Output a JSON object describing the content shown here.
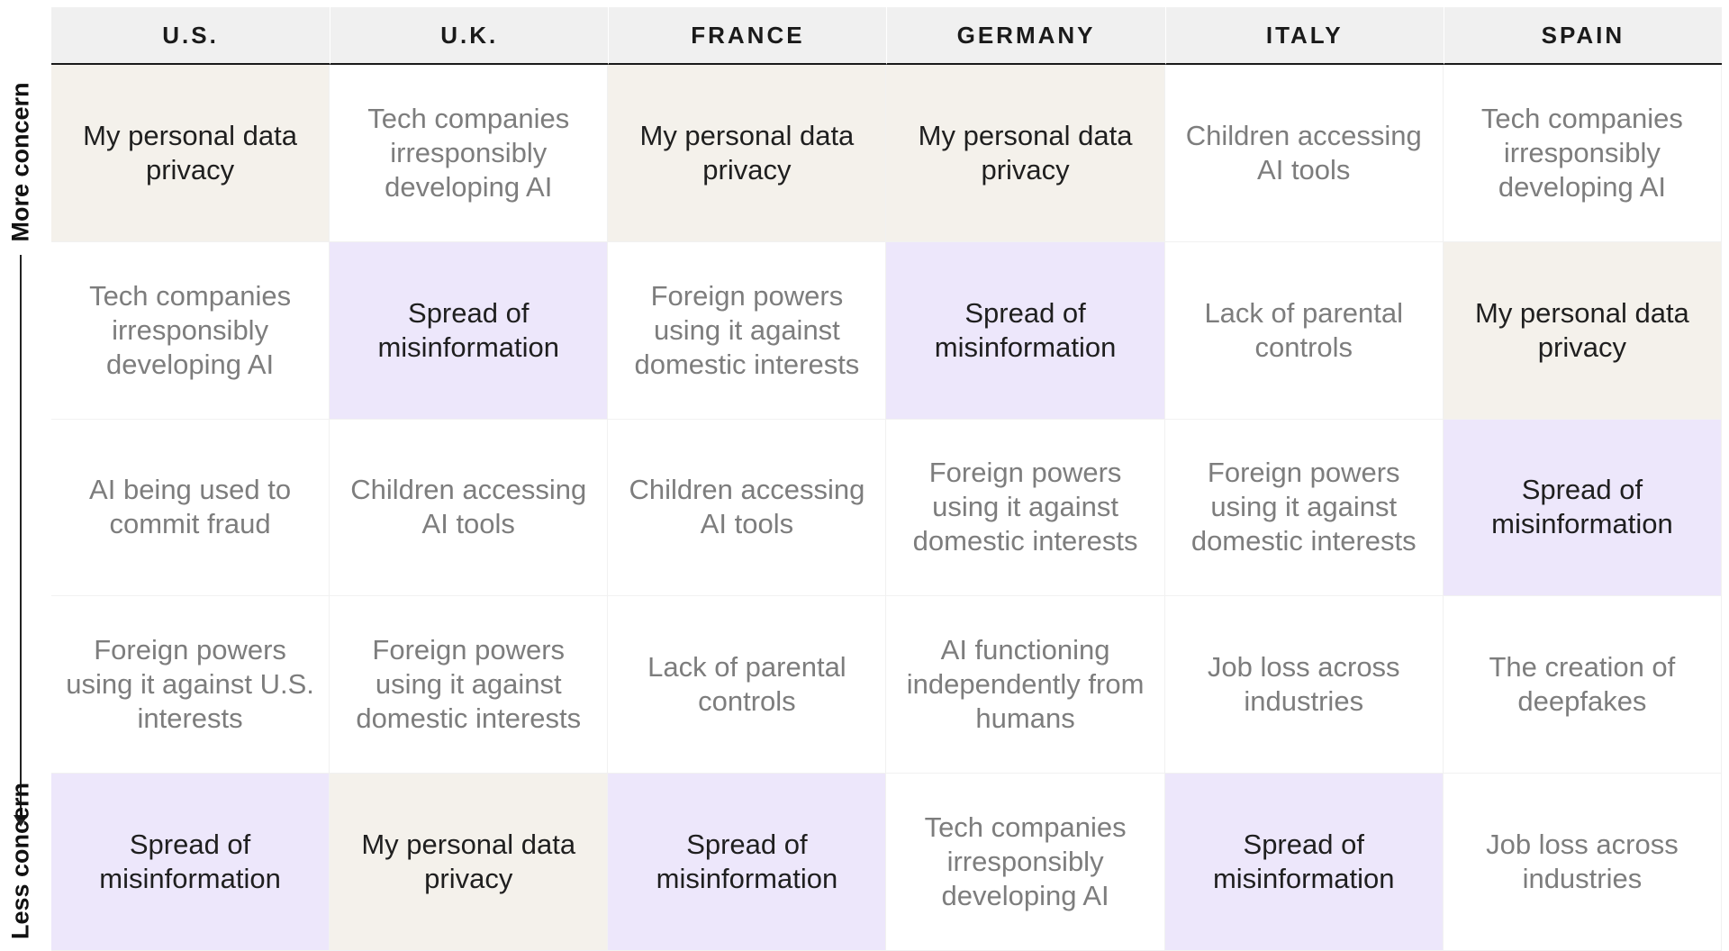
{
  "chart_data": {
    "type": "table",
    "columns": [
      "U.S.",
      "U.K.",
      "FRANCE",
      "GERMANY",
      "ITALY",
      "SPAIN"
    ],
    "axis": {
      "top_label": "More concern",
      "bottom_label": "Less concern"
    },
    "highlight_colors": {
      "My personal data privacy": "#f4f1eb",
      "Spread of misinformation": "#ede7fb"
    },
    "rows": [
      [
        "My personal data privacy",
        "Tech companies irresponsibly developing AI",
        "My personal data privacy",
        "My personal data privacy",
        "Children accessing AI tools",
        "Tech companies irresponsibly developing AI"
      ],
      [
        "Tech companies irresponsibly developing AI",
        "Spread of misinformation",
        "Foreign powers using it against domestic interests",
        "Spread of misinformation",
        "Lack of parental controls",
        "My personal data privacy"
      ],
      [
        "AI being used to commit fraud",
        "Children accessing AI tools",
        "Children accessing AI tools",
        "Foreign powers using it against domestic interests",
        "Foreign powers using it against domestic interests",
        "Spread of misinformation"
      ],
      [
        "Foreign powers using it against U.S. interests",
        "Foreign powers using it against domestic interests",
        "Lack of parental controls",
        "AI functioning independently from humans",
        "Job loss across industries",
        "The creation of deepfakes"
      ],
      [
        "Spread of misinformation",
        "My personal data privacy",
        "Spread of misinformation",
        "Tech companies irresponsibly developing AI",
        "Spread of misinformation",
        "Job loss across industries"
      ]
    ]
  }
}
